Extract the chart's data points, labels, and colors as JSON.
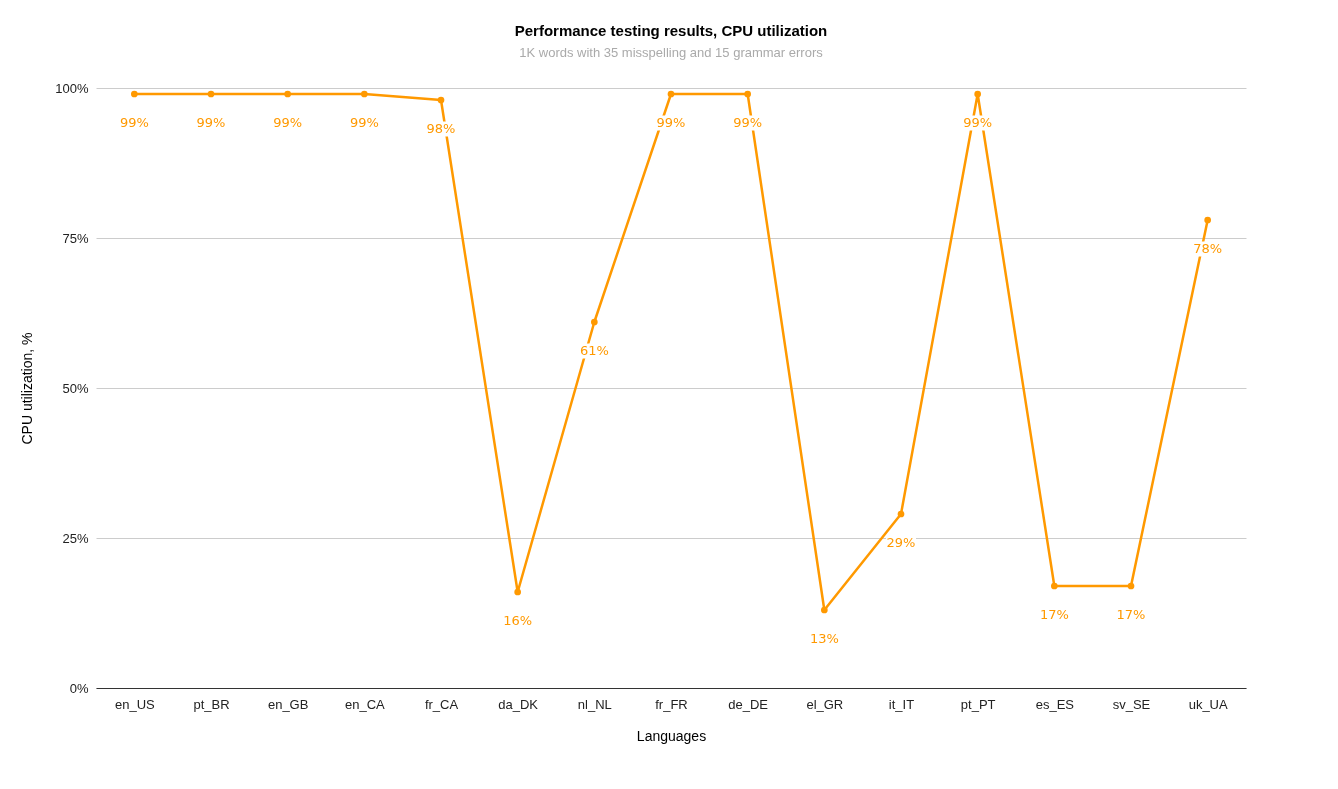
{
  "chart_data": {
    "type": "line",
    "title": "Performance testing results, CPU utilization",
    "subtitle": "1K words with 35 misspelling and 15 grammar errors",
    "xlabel": "Languages",
    "ylabel": "CPU utilization, %",
    "categories": [
      "en_US",
      "pt_BR",
      "en_GB",
      "en_CA",
      "fr_CA",
      "da_DK",
      "nl_NL",
      "fr_FR",
      "de_DE",
      "el_GR",
      "it_IT",
      "pt_PT",
      "es_ES",
      "sv_SE",
      "uk_UA"
    ],
    "series": [
      {
        "color": "#ff9900",
        "values": [
          99,
          99,
          99,
          99,
          98,
          16,
          61,
          99,
          99,
          13,
          29,
          99,
          17,
          17,
          78
        ],
        "value_labels": [
          "99%",
          "99%",
          "99%",
          "99%",
          "98%",
          "16%",
          "61%",
          "99%",
          "99%",
          "13%",
          "29%",
          "99%",
          "17%",
          "17%",
          "78%"
        ]
      }
    ],
    "ylim": [
      0,
      100
    ],
    "yticks": [
      {
        "value": 0,
        "label": "0%"
      },
      {
        "value": 25,
        "label": "25%"
      },
      {
        "value": 50,
        "label": "50%"
      },
      {
        "value": 75,
        "label": "75%"
      },
      {
        "value": 100,
        "label": "100%"
      }
    ],
    "grid": "y",
    "legend": false,
    "marker": "circle",
    "line_style": "solid"
  }
}
